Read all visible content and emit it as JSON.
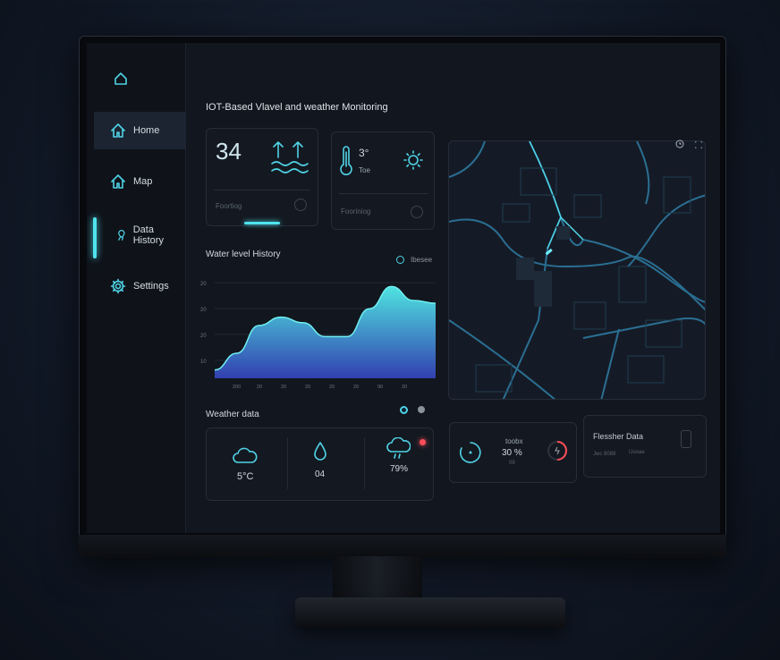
{
  "app": {
    "title": "IOT-Based Vlavel and weather Monitoring"
  },
  "sidebar": {
    "items": [
      {
        "label": "Home",
        "icon": "home-icon",
        "active": true
      },
      {
        "label": "Map",
        "icon": "home-icon"
      },
      {
        "label": "Data History",
        "icon": "location-pin-icon"
      },
      {
        "label": "Settings",
        "icon": "gear-icon"
      }
    ]
  },
  "water_card": {
    "value": "34",
    "footer": "Foortiog",
    "icon": "water-rising-icon"
  },
  "temp_card": {
    "value": "3°",
    "unit": "Toe",
    "footer": "Fooriniog",
    "icon": "sun-icon"
  },
  "chart": {
    "title": "Water level History",
    "legend": "Ibesee"
  },
  "chart_data": {
    "type": "area",
    "title": "Water level History",
    "y_tick_labels": [
      "20",
      "20",
      "20",
      "10"
    ],
    "x_tick_labels": [
      "200",
      "20",
      "20",
      "20",
      "20",
      "20",
      "90",
      "20"
    ],
    "x": [
      0,
      1,
      2,
      3,
      4,
      5,
      6,
      7,
      8,
      9,
      10
    ],
    "values": [
      8,
      14,
      24,
      27,
      25,
      20,
      20,
      30,
      38,
      33,
      32
    ],
    "ylim": [
      5,
      42
    ],
    "grid": true,
    "colors": {
      "top": "#4fe3e0",
      "bottom": "#3240b0"
    }
  },
  "weather": {
    "title": "Weather data",
    "items": [
      {
        "icon": "cloud-icon",
        "value": "5°C"
      },
      {
        "icon": "droplet-icon",
        "value": "04"
      },
      {
        "icon": "rain-cloud-icon",
        "value": "79%"
      }
    ],
    "alert_color": "#ff4d5a"
  },
  "gauge_card": {
    "label": "toobx",
    "value": "30 %",
    "sub": "09"
  },
  "fresh_card": {
    "title": "Flessher Data",
    "col1": "Jwc 8088",
    "col2": "Uooae"
  },
  "colors": {
    "accent": "#4fd3e6",
    "pin": "#e8404a",
    "bg": "#12161e"
  }
}
